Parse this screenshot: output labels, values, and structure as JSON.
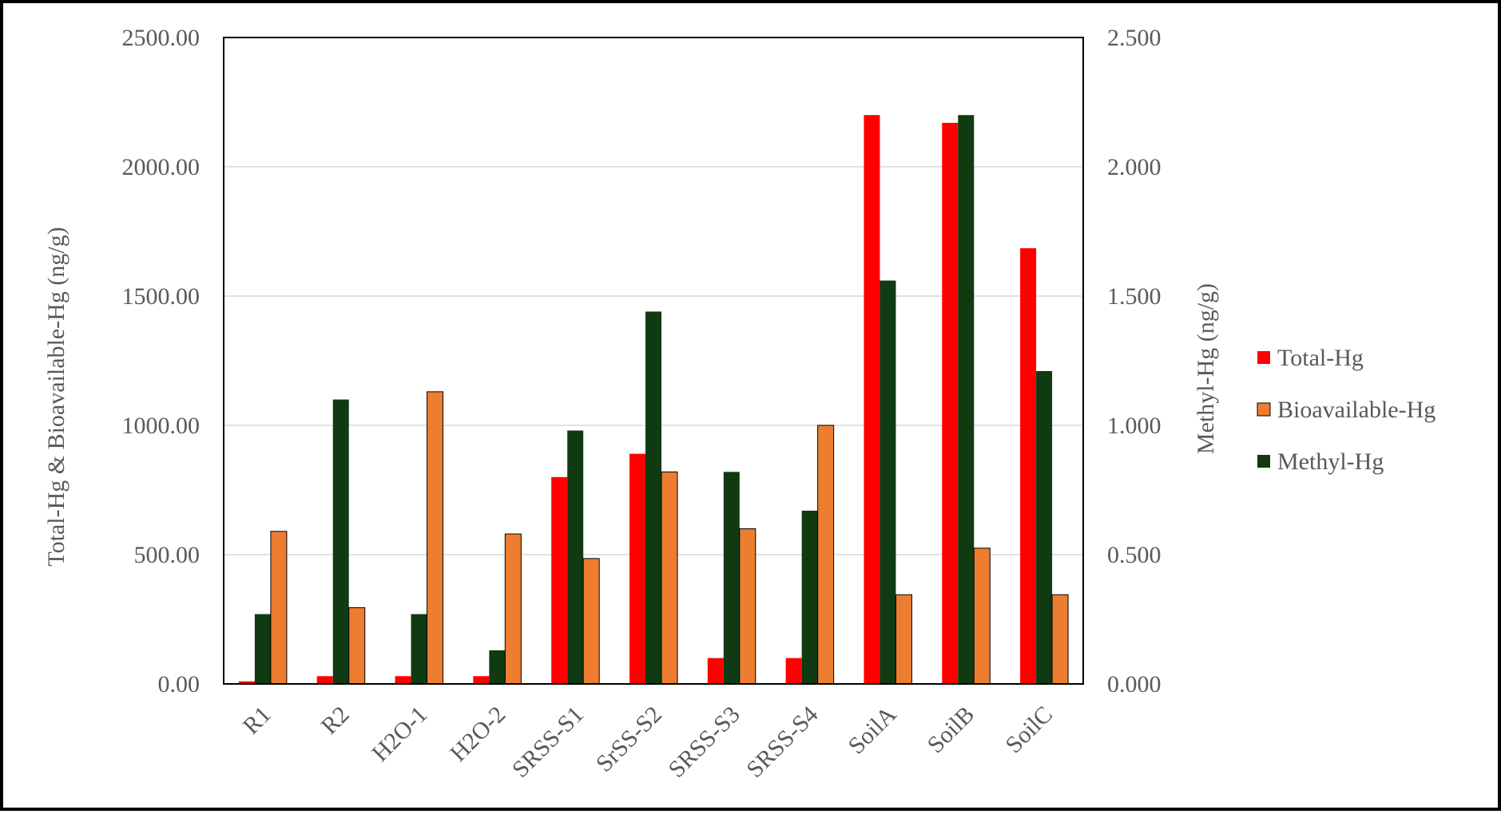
{
  "chart_data": {
    "type": "bar",
    "title": "",
    "categories": [
      "R1",
      "R2",
      "H2O-1",
      "H2O-2",
      "SRSS-S1",
      "SrSS-S2",
      "SRSS-S3",
      "SRSS-S4",
      "SoilA",
      "SoilB",
      "SoilC"
    ],
    "ylabel": "Total-Hg & Bioavailable-Hg (ng/g)",
    "y2label": "Methyl-Hg (ng/g)",
    "ylim": [
      0,
      2500
    ],
    "y2lim": [
      0,
      2.5
    ],
    "yticks": [
      "0.00",
      "500.00",
      "1000.00",
      "1500.00",
      "2000.00",
      "2500.00"
    ],
    "y2ticks": [
      "0.000",
      "0.500",
      "1.000",
      "1.500",
      "2.000",
      "2.500"
    ],
    "grid": true,
    "legend_position": "right",
    "series": [
      {
        "name": "Total-Hg",
        "axis": "left",
        "color": "#ff0000",
        "values": [
          10,
          30,
          30,
          30,
          800,
          890,
          100,
          100,
          2200,
          2170,
          1685
        ]
      },
      {
        "name": "Methyl-Hg",
        "axis": "right",
        "color": "#0f3a12",
        "values": [
          0.27,
          1.1,
          0.27,
          0.13,
          0.98,
          1.44,
          0.82,
          0.67,
          1.56,
          2.2,
          1.21
        ]
      },
      {
        "name": "Bioavailable-Hg",
        "axis": "left",
        "color": "#ed7d31",
        "values": [
          590,
          295,
          1130,
          580,
          485,
          820,
          600,
          1000,
          345,
          525,
          345
        ]
      }
    ],
    "legend": [
      "Total-Hg",
      "Bioavailable-Hg",
      "Methyl-Hg"
    ]
  }
}
